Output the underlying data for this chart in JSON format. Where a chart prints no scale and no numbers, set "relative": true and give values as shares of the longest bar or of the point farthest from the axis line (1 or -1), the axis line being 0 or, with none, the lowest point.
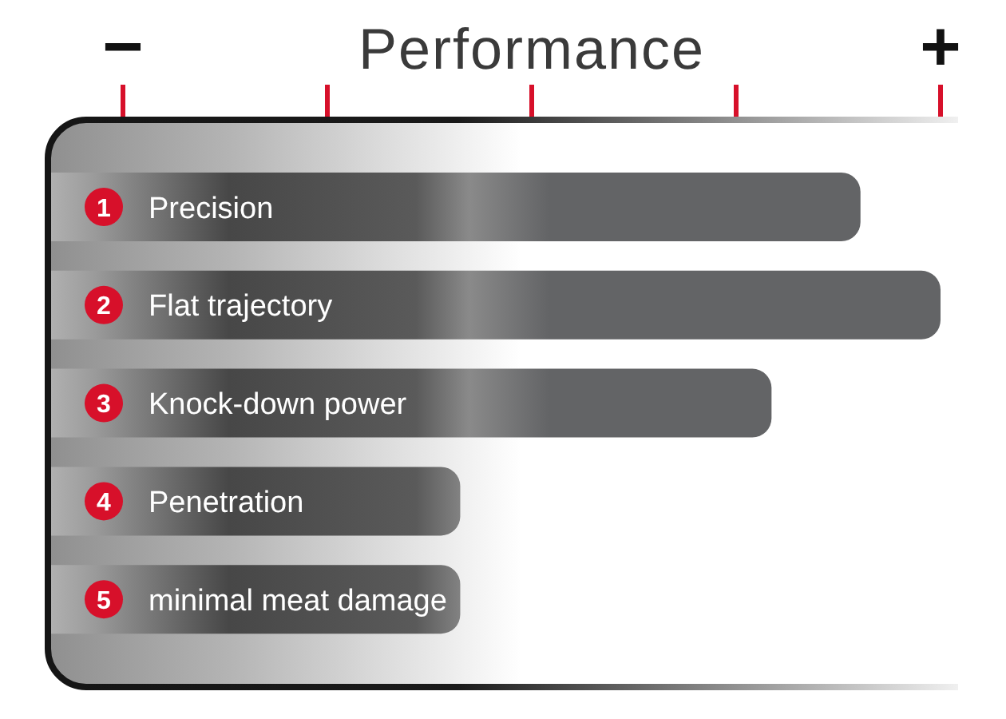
{
  "chart_data": {
    "type": "bar",
    "orientation": "horizontal",
    "relative": true,
    "title": "Performance",
    "categories": [
      "Precision",
      "Flat trajectory",
      "Knock-down power",
      "Penetration",
      "minimal meat damage"
    ],
    "values": [
      0.91,
      1,
      0.81,
      0.46,
      0.46
    ],
    "color": "#636466",
    "annotations": [
      "−",
      "+",
      {
        "text": "1",
        "y": "Precision"
      },
      {
        "text": "2",
        "y": "Flat trajectory"
      },
      {
        "text": "3",
        "y": "Knock-down power"
      },
      {
        "text": "4",
        "y": "Penetration"
      },
      {
        "text": "5",
        "y": "minimal meat damage"
      }
    ]
  }
}
